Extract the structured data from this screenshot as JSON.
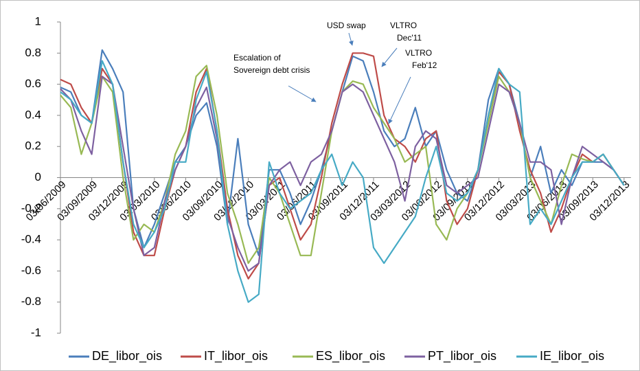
{
  "chart_data": {
    "type": "line",
    "categories": [
      "03/06/2009",
      null,
      null,
      "03/09/2009",
      null,
      null,
      "03/12/2009",
      null,
      null,
      "03/03/2010",
      null,
      null,
      "03/06/2010",
      null,
      null,
      "03/09/2010",
      null,
      null,
      "03/12/2010",
      null,
      null,
      "03/03/2011",
      null,
      null,
      "03/06/2011",
      null,
      null,
      "03/09/2011",
      null,
      null,
      "03/12/2011",
      null,
      null,
      "03/03/2012",
      null,
      null,
      "03/06/2012",
      null,
      null,
      "03/09/2012",
      null,
      null,
      "03/12/2012",
      null,
      null,
      "03/03/2013",
      null,
      null,
      "03/06/2013",
      null,
      null,
      "03/09/2013",
      null,
      null,
      "03/12/2013"
    ],
    "series": [
      {
        "name": "DE_libor_ois",
        "color": "#4a7ebb",
        "values": [
          0.58,
          0.55,
          0.4,
          0.35,
          0.82,
          0.7,
          0.55,
          -0.2,
          -0.45,
          -0.3,
          -0.1,
          0.1,
          0.2,
          0.4,
          0.48,
          0.2,
          -0.3,
          0.25,
          -0.3,
          -0.5,
          0.05,
          0.05,
          -0.1,
          -0.3,
          -0.15,
          0.05,
          0.3,
          0.55,
          0.78,
          0.75,
          0.55,
          0.3,
          0.2,
          0.25,
          0.45,
          0.2,
          0.3,
          0.05,
          -0.1,
          -0.15,
          0.05,
          0.5,
          0.7,
          0.6,
          0.35,
          0.0,
          0.2,
          -0.1,
          0.05,
          -0.05,
          0.1,
          0.1,
          0.1,
          0.05,
          -0.05
        ]
      },
      {
        "name": "IT_libor_ois",
        "color": "#be4b48",
        "values": [
          0.63,
          0.6,
          0.45,
          0.35,
          0.7,
          0.6,
          0.1,
          -0.35,
          -0.5,
          -0.5,
          -0.2,
          0.05,
          0.2,
          0.55,
          0.7,
          0.3,
          -0.2,
          -0.5,
          -0.65,
          -0.55,
          -0.05,
          0.0,
          -0.2,
          -0.4,
          -0.3,
          0.0,
          0.35,
          0.6,
          0.8,
          0.8,
          0.78,
          0.4,
          0.25,
          0.2,
          0.1,
          0.25,
          0.3,
          -0.15,
          -0.3,
          -0.2,
          0.05,
          0.4,
          0.68,
          0.6,
          0.3,
          0.05,
          -0.1,
          -0.35,
          -0.2,
          0.0,
          0.15,
          0.1,
          0.15,
          0.05,
          -0.05
        ]
      },
      {
        "name": "ES_libor_ois",
        "color": "#98b954",
        "values": [
          0.53,
          0.45,
          0.15,
          0.35,
          0.65,
          0.55,
          0.0,
          -0.4,
          -0.3,
          -0.35,
          -0.15,
          0.15,
          0.3,
          0.65,
          0.72,
          0.4,
          -0.1,
          -0.3,
          -0.55,
          -0.45,
          0.0,
          -0.1,
          -0.3,
          -0.5,
          -0.5,
          -0.1,
          0.3,
          0.55,
          0.62,
          0.6,
          0.45,
          0.35,
          0.25,
          0.1,
          0.15,
          0.2,
          -0.3,
          -0.4,
          -0.2,
          -0.1,
          0.05,
          0.35,
          0.65,
          0.55,
          0.35,
          0.0,
          -0.15,
          -0.3,
          -0.05,
          0.15,
          0.12,
          0.1,
          0.15,
          0.05,
          -0.05
        ]
      },
      {
        "name": "PT_libor_ois",
        "color": "#7d60a0",
        "values": [
          0.57,
          0.5,
          0.3,
          0.15,
          0.65,
          0.6,
          0.2,
          -0.2,
          -0.5,
          -0.45,
          -0.15,
          0.05,
          0.2,
          0.45,
          0.58,
          0.25,
          -0.25,
          -0.45,
          -0.6,
          -0.55,
          -0.05,
          0.05,
          0.1,
          -0.05,
          0.1,
          0.15,
          0.3,
          0.55,
          0.6,
          0.55,
          0.4,
          0.25,
          0.1,
          -0.15,
          0.2,
          0.3,
          0.25,
          -0.05,
          -0.1,
          -0.05,
          0.0,
          0.3,
          0.6,
          0.55,
          0.35,
          0.1,
          0.1,
          0.05,
          -0.3,
          0.0,
          0.2,
          0.15,
          0.1,
          0.05,
          -0.05
        ]
      },
      {
        "name": "IE_libor_ois",
        "color": "#46aac5",
        "values": [
          0.55,
          0.5,
          0.4,
          0.35,
          0.75,
          0.6,
          0.1,
          -0.3,
          -0.45,
          -0.35,
          -0.2,
          0.1,
          0.1,
          0.5,
          0.68,
          0.3,
          -0.3,
          -0.6,
          -0.8,
          -0.75,
          0.1,
          -0.1,
          -0.2,
          -0.15,
          -0.1,
          0.05,
          0.15,
          -0.05,
          0.1,
          0.0,
          -0.45,
          -0.55,
          -0.45,
          -0.35,
          -0.25,
          0.0,
          0.2,
          -0.1,
          -0.15,
          -0.1,
          0.05,
          0.4,
          0.7,
          0.6,
          0.55,
          -0.3,
          -0.2,
          -0.3,
          -0.15,
          0.0,
          0.1,
          0.1,
          0.15,
          0.05,
          -0.05
        ]
      }
    ],
    "ylim": [
      -1,
      1
    ],
    "yticks": [
      -1,
      -0.8,
      -0.6,
      -0.4,
      -0.2,
      0,
      0.2,
      0.4,
      0.6,
      0.8,
      1
    ],
    "grid": false,
    "legend": "bottom",
    "annotations": [
      {
        "lines": [
          "Escalation of",
          "Sovereign debt crisis"
        ]
      },
      {
        "lines": [
          "USD swap"
        ]
      },
      {
        "lines": [
          "VLTRO",
          "Dec'11"
        ]
      },
      {
        "lines": [
          "VLTRO",
          "Feb'12"
        ]
      }
    ]
  }
}
